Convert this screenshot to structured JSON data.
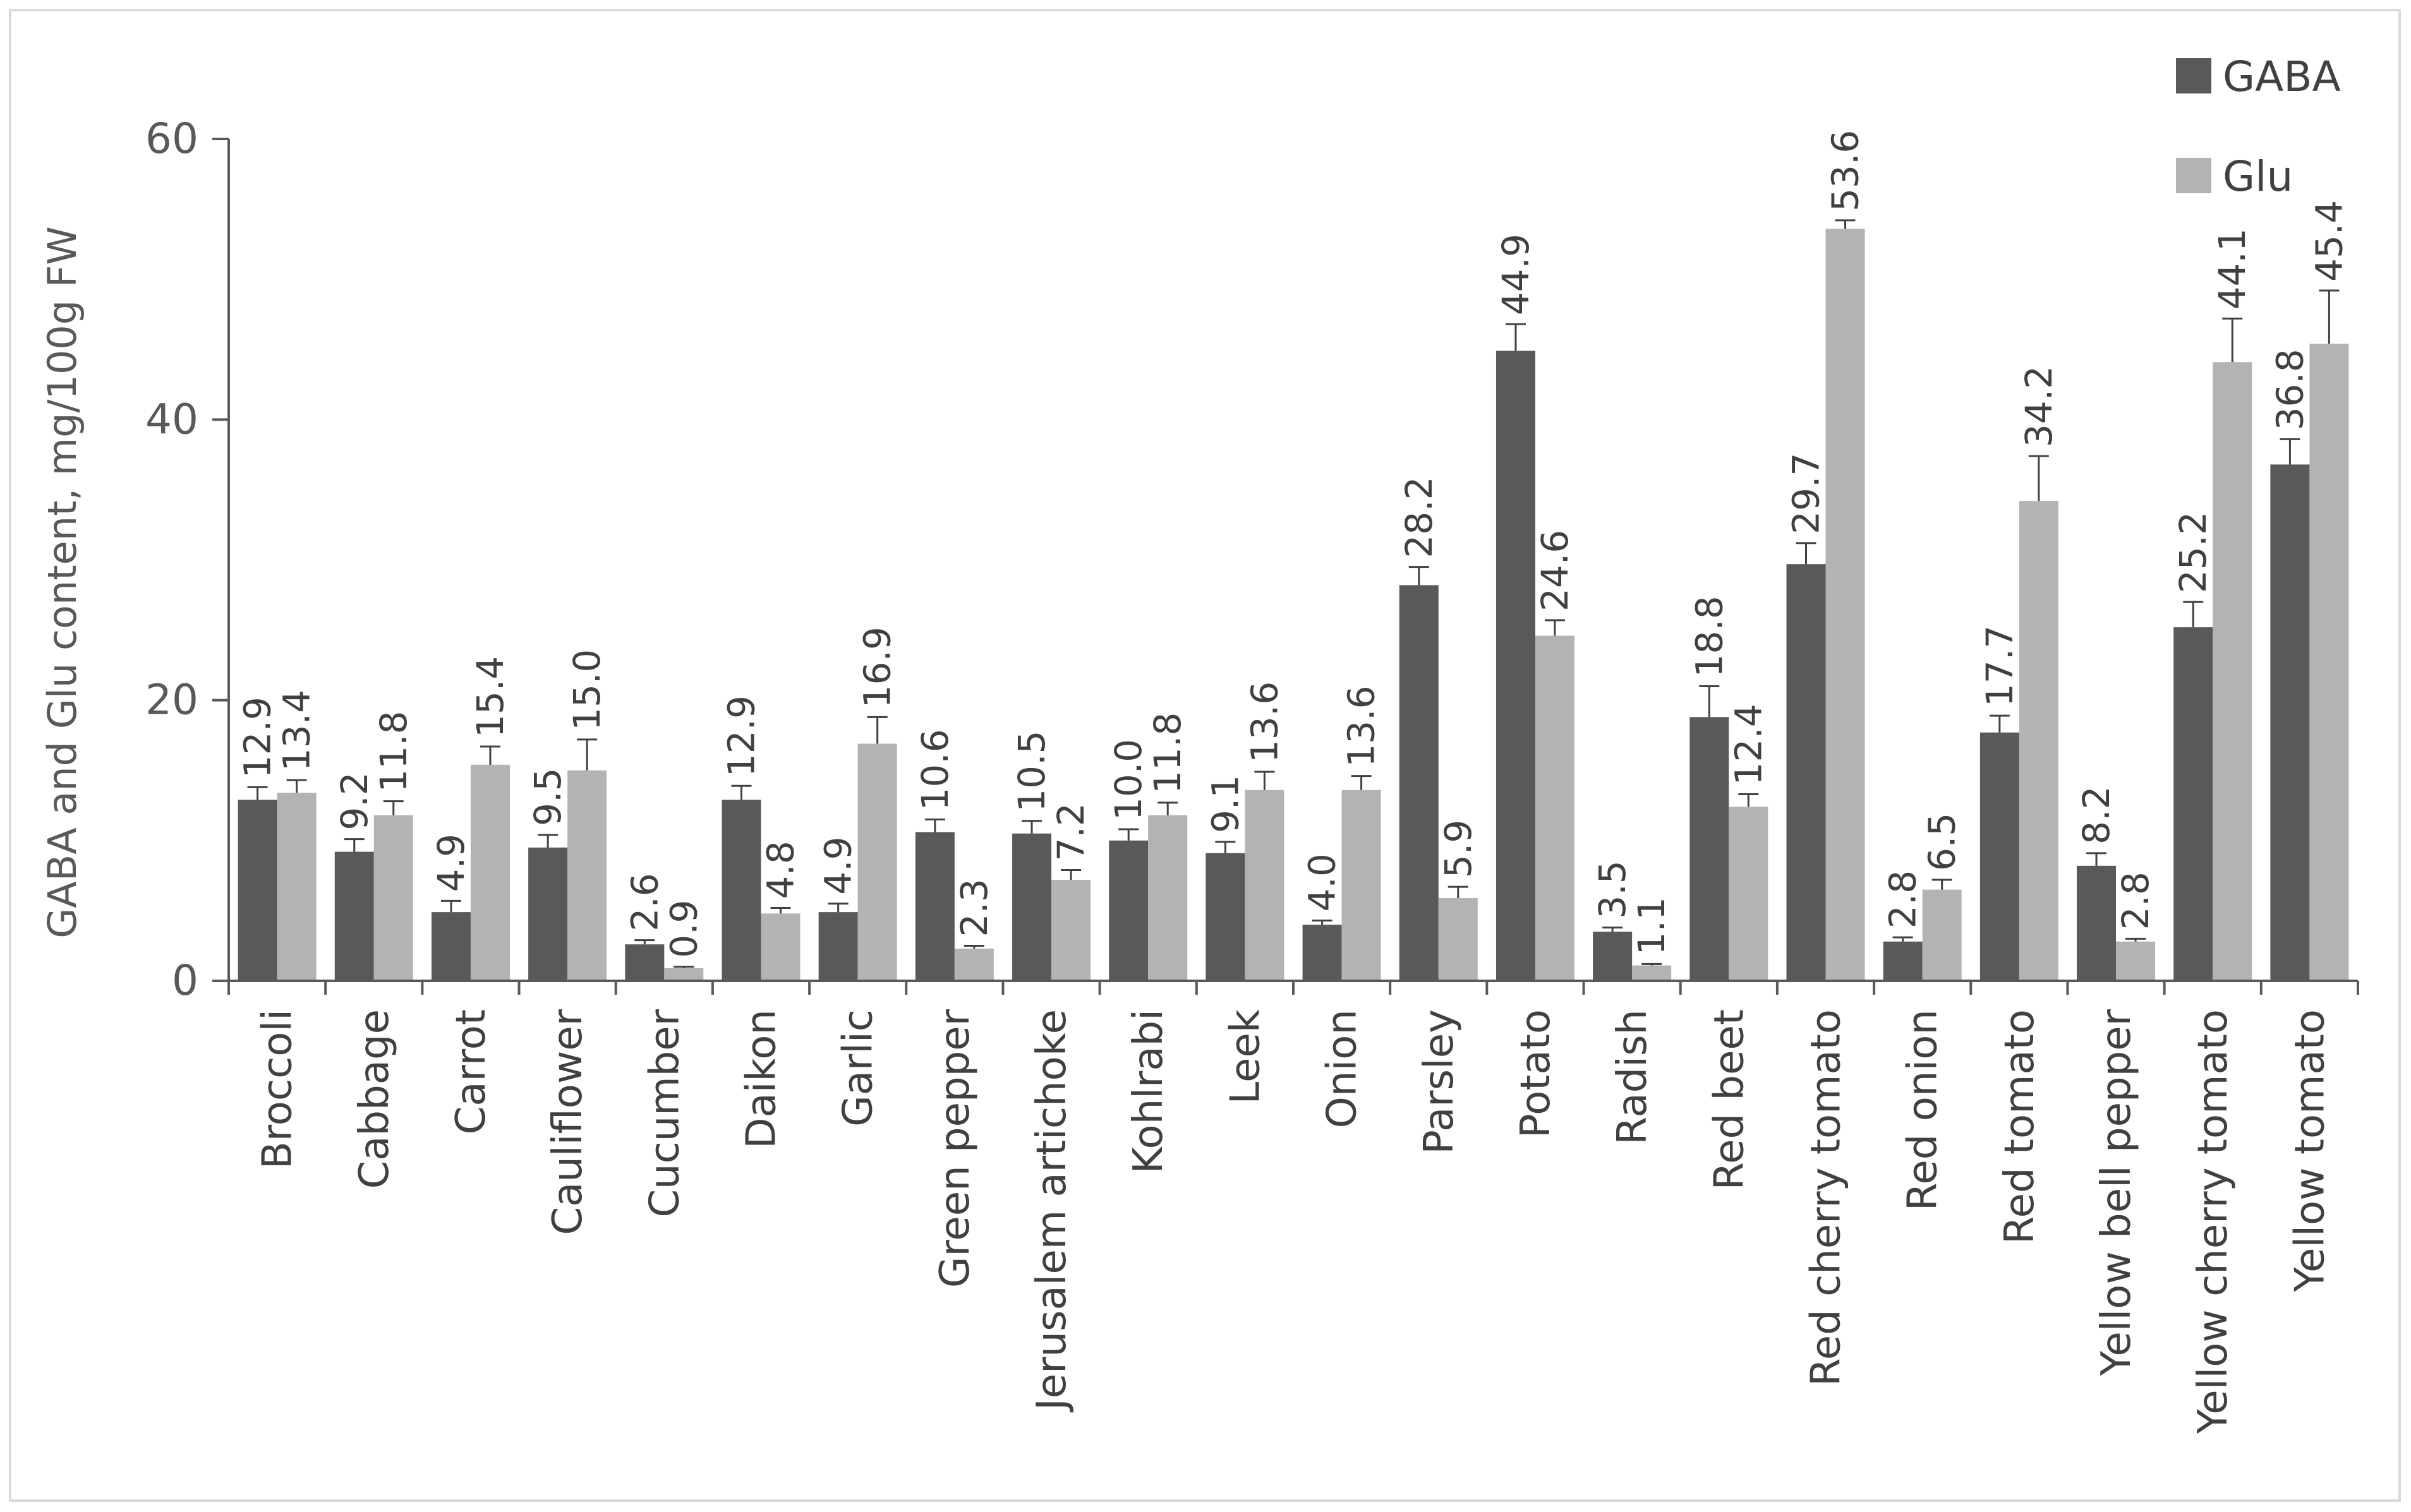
{
  "chart_data": {
    "type": "bar",
    "title": "",
    "ylabel": "GABA and Glu content, mg/100g FW",
    "xlabel": "",
    "ylim": [
      0,
      60
    ],
    "yticks": [
      0,
      20,
      40,
      60
    ],
    "grid": false,
    "legend_position": "top-right",
    "categories": [
      "Broccoli",
      "Cabbage",
      "Carrot",
      "Cauliflower",
      "Cucumber",
      "Daikon",
      "Garlic",
      "Green pepper",
      "Jerusalem artichoke",
      "Kohlrabi",
      "Leek",
      "Onion",
      "Parsley",
      "Potato",
      "Radish",
      "Red beet",
      "Red cherry tomato",
      "Red onion",
      "Red tomato",
      "Yellow bell pepper",
      "Yellow cherry tomato",
      "Yellow tomato"
    ],
    "series": [
      {
        "name": "GABA",
        "color": "#595959",
        "values": [
          12.9,
          9.2,
          4.9,
          9.5,
          2.6,
          12.9,
          4.9,
          10.6,
          10.5,
          10.0,
          9.1,
          4.0,
          28.2,
          44.9,
          3.5,
          18.8,
          29.7,
          2.8,
          17.7,
          8.2,
          25.2,
          36.8
        ],
        "value_labels": [
          "12.9",
          "9.2",
          "4.9",
          "9.5",
          "2.6",
          "12.9",
          "4.9",
          "10.6",
          "10.5",
          "10.0",
          "9.1",
          "4.0",
          "28.2",
          "44.9",
          "3.5",
          "18.8",
          "29.7",
          "2.8",
          "17.7",
          "8.2",
          "25.2",
          "36.8"
        ],
        "errors": [
          0.9,
          0.9,
          0.8,
          0.9,
          0.3,
          1.0,
          0.6,
          0.9,
          0.9,
          0.8,
          0.8,
          0.3,
          1.3,
          1.9,
          0.3,
          2.2,
          1.5,
          0.3,
          1.2,
          0.9,
          1.8,
          1.8
        ]
      },
      {
        "name": "Glu",
        "color": "#b3b3b3",
        "values": [
          13.4,
          11.8,
          15.4,
          15.0,
          0.9,
          4.8,
          16.9,
          2.3,
          7.2,
          11.8,
          13.6,
          13.6,
          5.9,
          24.6,
          1.1,
          12.4,
          53.6,
          6.5,
          34.2,
          2.8,
          44.1,
          45.4
        ],
        "value_labels": [
          "13.4",
          "11.8",
          "15.4",
          "15.0",
          "0.9",
          "4.8",
          "16.9",
          "2.3",
          "7.2",
          "11.8",
          "13.6",
          "13.6",
          "5.9",
          "24.6",
          "1.1",
          "12.4",
          "53.6",
          "6.5",
          "34.2",
          "2.8",
          "44.1",
          "45.4"
        ],
        "errors": [
          0.9,
          1.0,
          1.3,
          2.2,
          0.1,
          0.4,
          1.9,
          0.2,
          0.7,
          0.9,
          1.3,
          1.0,
          0.8,
          1.1,
          0.1,
          0.9,
          0.6,
          0.7,
          3.2,
          0.2,
          3.1,
          3.8
        ]
      }
    ]
  }
}
